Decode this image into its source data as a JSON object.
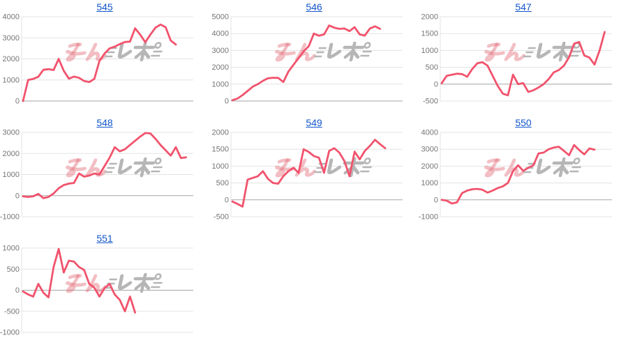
{
  "colors": {
    "line": "#f1536d",
    "link": "#1155cc",
    "axis_label": "#757575",
    "gridline": "#e3e3e3",
    "gridline_zero": "#a6a6a6",
    "watermark_pink": "rgba(224,100,112,0.42)",
    "watermark_gray": "#b6b6b6"
  },
  "watermark": {
    "text": "みんレポ",
    "pink_text": "みん",
    "gray_text": "レポ"
  },
  "chart_data": [
    {
      "type": "line",
      "title": "545",
      "xlabel": "",
      "ylabel": "",
      "grid": true,
      "legend": "none",
      "ylim": [
        0,
        4000
      ],
      "y_ticks": [
        4000,
        3000,
        2000,
        1000,
        0
      ],
      "values": [
        0,
        1000,
        1050,
        1150,
        1480,
        1510,
        1470,
        2000,
        1430,
        1060,
        1160,
        1100,
        950,
        900,
        1050,
        1900,
        2250,
        2500,
        2580,
        2700,
        2800,
        2820,
        3450,
        3150,
        2790,
        3150,
        3480,
        3630,
        3500,
        2870,
        2680
      ]
    },
    {
      "type": "line",
      "title": "546",
      "xlabel": "",
      "ylabel": "",
      "grid": true,
      "legend": "none",
      "ylim": [
        0,
        5000
      ],
      "y_ticks": [
        5000,
        4000,
        3000,
        2000,
        1000,
        0
      ],
      "values": [
        50,
        150,
        350,
        600,
        850,
        1000,
        1200,
        1350,
        1380,
        1370,
        1130,
        1750,
        2150,
        2550,
        2950,
        3250,
        4000,
        3870,
        3950,
        4480,
        4350,
        4280,
        4300,
        4150,
        4380,
        3950,
        3880,
        4300,
        4430,
        4280
      ]
    },
    {
      "type": "line",
      "title": "547",
      "xlabel": "",
      "ylabel": "",
      "grid": true,
      "legend": "none",
      "ylim": [
        -500,
        2000
      ],
      "y_ticks": [
        2000,
        1500,
        1000,
        500,
        0,
        -500
      ],
      "values": [
        30,
        250,
        280,
        310,
        300,
        220,
        450,
        620,
        650,
        550,
        250,
        -50,
        -280,
        -330,
        280,
        0,
        30,
        -230,
        -180,
        -100,
        0,
        150,
        350,
        420,
        550,
        800,
        1200,
        1250,
        850,
        790,
        580,
        1000,
        1550
      ]
    },
    {
      "type": "line",
      "title": "548",
      "xlabel": "",
      "ylabel": "",
      "grid": true,
      "legend": "none",
      "ylim": [
        -1000,
        3000
      ],
      "y_ticks": [
        3000,
        2000,
        1000,
        0,
        -1000
      ],
      "values": [
        -30,
        -60,
        -30,
        80,
        -120,
        -60,
        100,
        350,
        500,
        570,
        600,
        1050,
        900,
        950,
        1050,
        1000,
        1400,
        1800,
        2300,
        2100,
        2200,
        2400,
        2600,
        2800,
        2970,
        2950,
        2700,
        2400,
        2150,
        1900,
        2300,
        1780,
        1820
      ]
    },
    {
      "type": "line",
      "title": "549",
      "xlabel": "",
      "ylabel": "",
      "grid": true,
      "legend": "none",
      "ylim": [
        -500,
        2000
      ],
      "y_ticks": [
        2000,
        1500,
        1000,
        500,
        0,
        -500
      ],
      "values": [
        -50,
        -120,
        -200,
        600,
        650,
        700,
        850,
        620,
        500,
        480,
        700,
        850,
        950,
        800,
        1500,
        1420,
        1300,
        1250,
        800,
        1450,
        1530,
        1400,
        1150,
        700,
        1430,
        1200,
        1450,
        1600,
        1780,
        1650,
        1530
      ]
    },
    {
      "type": "line",
      "title": "550",
      "xlabel": "",
      "ylabel": "",
      "grid": true,
      "legend": "none",
      "ylim": [
        -1000,
        4000
      ],
      "y_ticks": [
        4000,
        3000,
        2000,
        1000,
        0,
        -1000
      ],
      "values": [
        0,
        -50,
        -220,
        -150,
        400,
        550,
        630,
        650,
        600,
        430,
        550,
        700,
        800,
        1000,
        1700,
        2050,
        1720,
        1900,
        2050,
        2750,
        2800,
        3000,
        3100,
        3150,
        2900,
        2650,
        3250,
        2950,
        2700,
        3050,
        2980
      ]
    },
    {
      "type": "line",
      "title": "551",
      "xlabel": "",
      "ylabel": "",
      "grid": true,
      "legend": "none",
      "ylim": [
        -1000,
        1000
      ],
      "y_ticks": [
        1000,
        500,
        0,
        -500,
        -1000
      ],
      "values": [
        -30,
        -100,
        -150,
        150,
        -60,
        -170,
        550,
        980,
        420,
        700,
        680,
        550,
        480,
        150,
        60,
        -150,
        50,
        150,
        -100,
        -230,
        -500,
        -150,
        -530
      ]
    }
  ]
}
